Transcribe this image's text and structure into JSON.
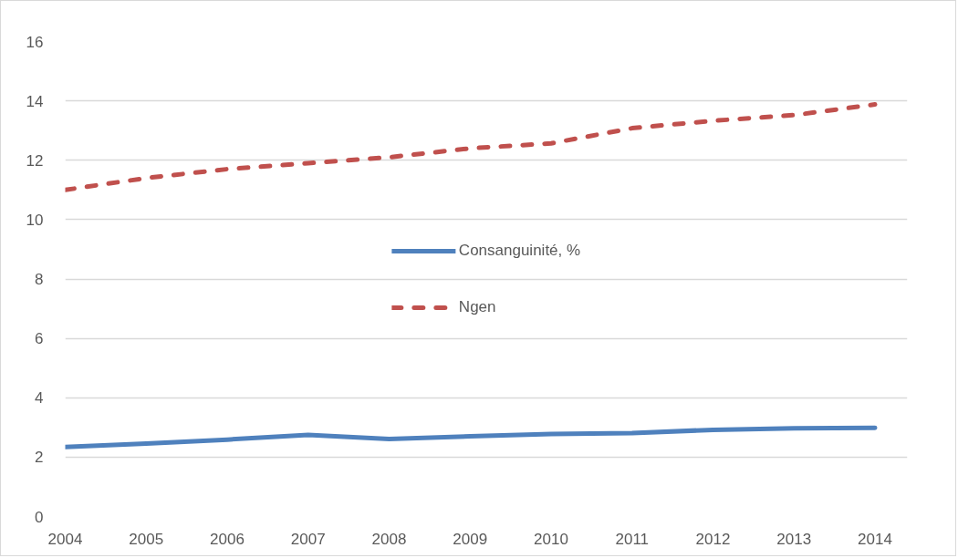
{
  "chart_data": {
    "type": "line",
    "x": [
      2004,
      2005,
      2006,
      2007,
      2008,
      2009,
      2010,
      2011,
      2012,
      2013,
      2014
    ],
    "series": [
      {
        "name": "Consanguinité, %",
        "color": "#4f81bd",
        "line_style": "solid",
        "values": [
          2.34,
          2.46,
          2.59,
          2.75,
          2.61,
          2.7,
          2.78,
          2.81,
          2.92,
          2.97,
          2.99
        ]
      },
      {
        "name": "Ngen",
        "color": "#c0504d",
        "line_style": "dashed",
        "values": [
          11.0,
          11.4,
          11.7,
          11.9,
          12.1,
          12.4,
          12.57,
          13.08,
          13.33,
          13.52,
          13.88
        ]
      }
    ],
    "xlim": [
      2004,
      2014.4
    ],
    "xticks": [
      2004,
      2005,
      2006,
      2007,
      2008,
      2009,
      2010,
      2011,
      2012,
      2013,
      2014
    ],
    "ylim": [
      0,
      16
    ],
    "yticks": [
      0,
      2,
      4,
      6,
      8,
      10,
      12,
      14,
      16
    ],
    "grid": "y",
    "legend": "center"
  }
}
